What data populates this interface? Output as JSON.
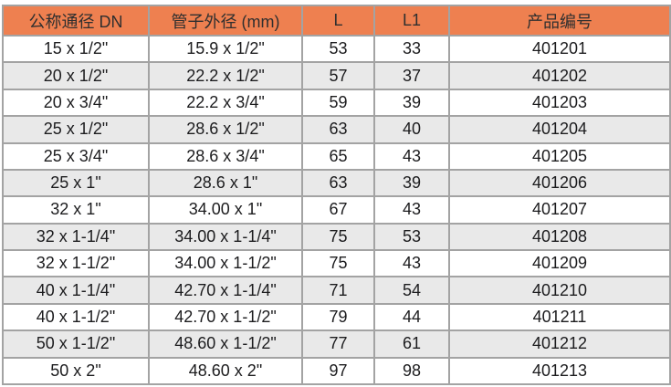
{
  "colors": {
    "header_bg": "#EE8050",
    "row_alt_bg": "#E9E9E9",
    "border": "#A3A3A3",
    "header_text": "#2F2F2F",
    "cell_text": "#1C1C1E"
  },
  "table": {
    "columns": [
      {
        "key": "dn",
        "label": "公称通径 DN"
      },
      {
        "key": "od",
        "label": "管子外径 (mm)"
      },
      {
        "key": "l",
        "label": "L"
      },
      {
        "key": "l1",
        "label": "L1"
      },
      {
        "key": "code",
        "label": "产品编号"
      }
    ],
    "rows": [
      [
        "15 x 1/2\"",
        "15.9 x 1/2\"",
        "53",
        "33",
        "401201"
      ],
      [
        "20 x 1/2\"",
        "22.2 x 1/2\"",
        "57",
        "37",
        "401202"
      ],
      [
        "20 x 3/4\"",
        "22.2 x 3/4\"",
        "59",
        "39",
        "401203"
      ],
      [
        "25 x 1/2\"",
        "28.6 x 1/2\"",
        "63",
        "40",
        "401204"
      ],
      [
        "25 x 3/4\"",
        "28.6 x 3/4\"",
        "65",
        "43",
        "401205"
      ],
      [
        "25 x 1\"",
        "28.6 x 1\"",
        "63",
        "39",
        "401206"
      ],
      [
        "32 x 1\"",
        "34.00 x 1\"",
        "67",
        "43",
        "401207"
      ],
      [
        "32 x 1-1/4\"",
        "34.00 x 1-1/4\"",
        "75",
        "53",
        "401208"
      ],
      [
        "32 x 1-1/2\"",
        "34.00 x 1-1/2\"",
        "75",
        "43",
        "401209"
      ],
      [
        "40 x 1-1/4\"",
        "42.70 x 1-1/4\"",
        "71",
        "54",
        "401210"
      ],
      [
        "40 x 1-1/2\"",
        "42.70 x 1-1/2\"",
        "79",
        "44",
        "401211"
      ],
      [
        "50 x 1-1/2\"",
        "48.60 x 1-1/2\"",
        "77",
        "61",
        "401212"
      ],
      [
        "50 x 2\"",
        "48.60 x 2\"",
        "97",
        "98",
        "401213"
      ]
    ]
  }
}
